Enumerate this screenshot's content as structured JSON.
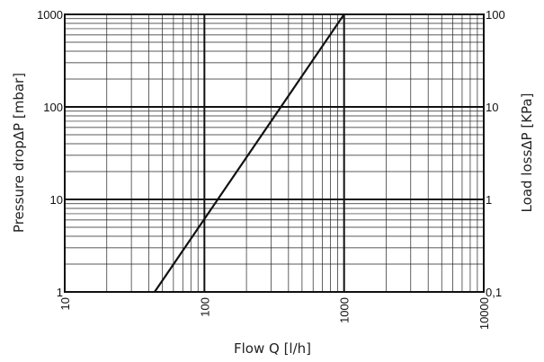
{
  "chart_data": {
    "type": "line",
    "title": "",
    "x_scale": "log",
    "y_scale": "log",
    "xlabel": "Flow Q [l/h]",
    "ylabel": "Pressure dropΔP [mbar]",
    "y2label": "Load lossΔP [KPa]",
    "xlim": [
      10,
      10000
    ],
    "ylim": [
      1,
      1000
    ],
    "y2lim": [
      0.1,
      100
    ],
    "x_ticks": [
      {
        "value": 10,
        "label": "10"
      },
      {
        "value": 100,
        "label": "100"
      },
      {
        "value": 1000,
        "label": "1000"
      },
      {
        "value": 10000,
        "label": "10000"
      }
    ],
    "y_ticks": [
      {
        "value": 1,
        "label": "1"
      },
      {
        "value": 10,
        "label": "10"
      },
      {
        "value": 100,
        "label": "100"
      },
      {
        "value": 1000,
        "label": "1000"
      }
    ],
    "y2_ticks": [
      {
        "value": 1,
        "label": "0,1"
      },
      {
        "value": 10,
        "label": "1"
      },
      {
        "value": 100,
        "label": "10"
      },
      {
        "value": 1000,
        "label": "100"
      }
    ],
    "grid": "log minor and major",
    "series": [
      {
        "x": [
          44,
          1000
        ],
        "y": [
          1,
          1000
        ]
      }
    ]
  }
}
